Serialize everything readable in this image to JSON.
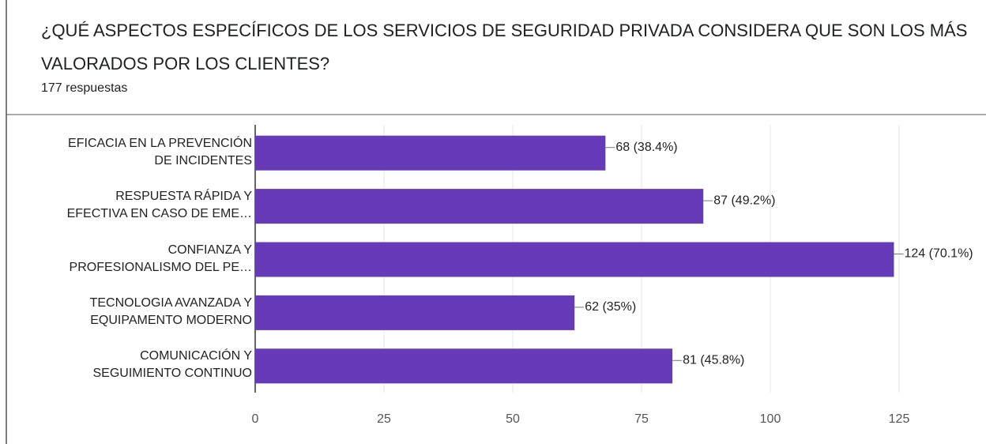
{
  "chart_data": {
    "type": "bar",
    "orientation": "horizontal",
    "title": "¿QUÉ ASPECTOS ESPECÍFICOS DE LOS SERVICIOS DE SEGURIDAD PRIVADA CONSIDERA QUE SON LOS MÁS VALORADOS POR LOS CLIENTES?",
    "subtitle": "177 respuestas",
    "categories": [
      "EFICACIA EN LA PREVENCIÓN\nDE INCIDENTES",
      "RESPUESTA RÁPIDA Y\nEFECTIVA EN CASO DE EME…",
      "CONFIANZA Y\nPROFESIONALISMO DEL PE…",
      "TECNOLOGIA AVANZADA Y\nEQUIPAMENTO MODERNO",
      "COMUNICACIÓN Y\nSEGUIMIENTO CONTINUO"
    ],
    "values": [
      68,
      87,
      124,
      62,
      81
    ],
    "value_labels": [
      "68 (38.4%)",
      "87 (49.2%)",
      "124 (70.1%)",
      "62 (35%)",
      "81 (45.8%)"
    ],
    "color": "#673ab7",
    "xlim": [
      0,
      125
    ],
    "xticks": [
      0,
      25,
      50,
      75,
      100,
      125
    ],
    "grid": true
  }
}
